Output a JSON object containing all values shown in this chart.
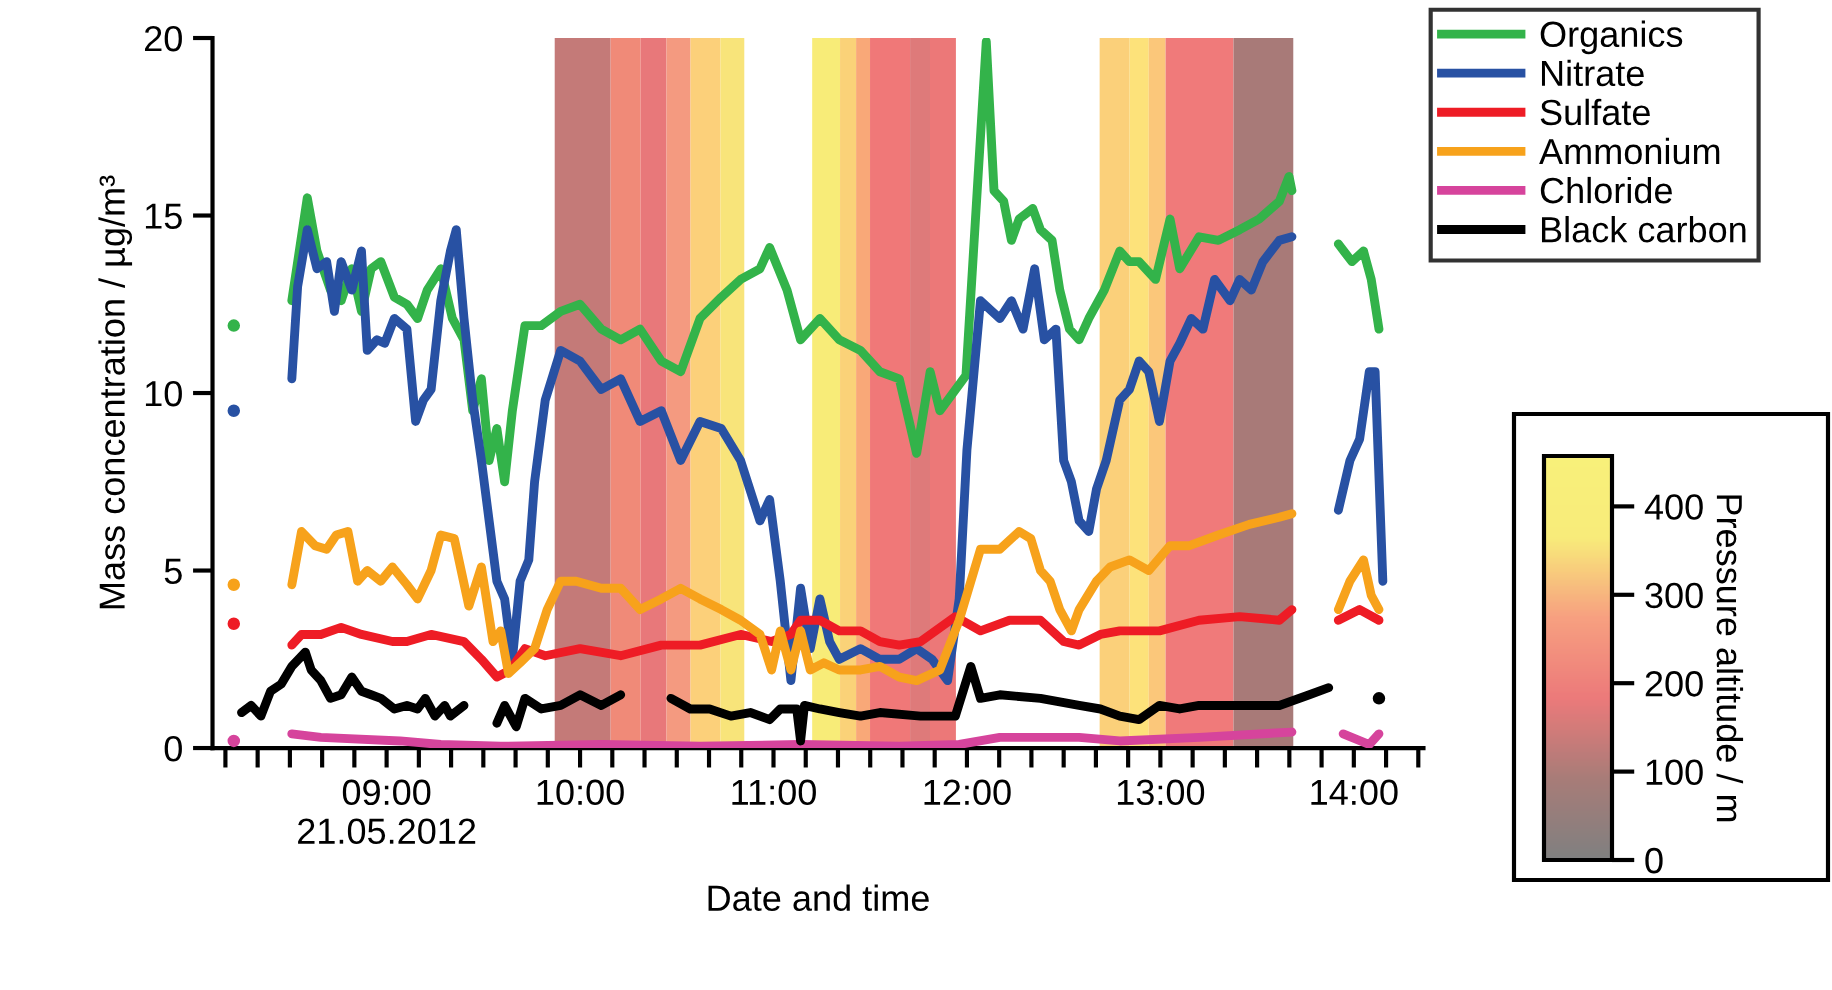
{
  "chart_data": {
    "type": "line",
    "xlabel": "Date and time",
    "ylabel": "Mass concentration / µg/m³",
    "clabel": "Pressure altitude / m",
    "clim": [
      0,
      457
    ],
    "cticks": [
      0,
      100,
      200,
      300,
      400
    ],
    "xlim": [
      8.1,
      14.36
    ],
    "ylim": [
      0,
      20
    ],
    "yticks": [
      0,
      5,
      10,
      15,
      20
    ],
    "legend": "top right",
    "grid": false,
    "marker": "none",
    "line_style": "solid",
    "xticks": [
      {
        "value": 8.1667,
        "label": null
      },
      {
        "value": 8.3333,
        "label": null
      },
      {
        "value": 8.5,
        "label": null
      },
      {
        "value": 8.6667,
        "label": null
      },
      {
        "value": 8.8333,
        "label": null
      },
      {
        "value": 9,
        "label": "09:00\n21.05.2012"
      },
      {
        "value": 9.1667,
        "label": null
      },
      {
        "value": 9.3333,
        "label": null
      },
      {
        "value": 9.5,
        "label": null
      },
      {
        "value": 9.6667,
        "label": null
      },
      {
        "value": 9.8333,
        "label": null
      },
      {
        "value": 10,
        "label": "10:00"
      },
      {
        "value": 10.1667,
        "label": null
      },
      {
        "value": 10.3333,
        "label": null
      },
      {
        "value": 10.5,
        "label": null
      },
      {
        "value": 10.6667,
        "label": null
      },
      {
        "value": 10.8333,
        "label": null
      },
      {
        "value": 11,
        "label": "11:00"
      },
      {
        "value": 11.1667,
        "label": null
      },
      {
        "value": 11.3333,
        "label": null
      },
      {
        "value": 11.5,
        "label": null
      },
      {
        "value": 11.6667,
        "label": null
      },
      {
        "value": 11.8333,
        "label": null
      },
      {
        "value": 12,
        "label": "12:00"
      },
      {
        "value": 12.1667,
        "label": null
      },
      {
        "value": 12.3333,
        "label": null
      },
      {
        "value": 12.5,
        "label": null
      },
      {
        "value": 12.6667,
        "label": null
      },
      {
        "value": 12.8333,
        "label": null
      },
      {
        "value": 13,
        "label": "13:00"
      },
      {
        "value": 13.1667,
        "label": null
      },
      {
        "value": 13.3333,
        "label": null
      },
      {
        "value": 13.5,
        "label": null
      },
      {
        "value": 13.6667,
        "label": null
      },
      {
        "value": 13.8333,
        "label": null
      },
      {
        "value": 14,
        "label": "14:00"
      },
      {
        "value": 14.1667,
        "label": null
      },
      {
        "value": 14.3333,
        "label": null
      }
    ],
    "bands": [
      {
        "axis": "x",
        "from": 9.869,
        "to": 10.158,
        "color": "#c47a78"
      },
      {
        "axis": "x",
        "from": 10.158,
        "to": 10.313,
        "color": "#f08a78"
      },
      {
        "axis": "x",
        "from": 10.313,
        "to": 10.447,
        "color": "#e8787a"
      },
      {
        "axis": "x",
        "from": 10.447,
        "to": 10.571,
        "color": "#f49a80"
      },
      {
        "axis": "x",
        "from": 10.571,
        "to": 10.726,
        "color": "#fcd07a"
      },
      {
        "axis": "x",
        "from": 10.726,
        "to": 10.849,
        "color": "#f8e47a"
      },
      {
        "axis": "x",
        "from": 11.2,
        "to": 11.344,
        "color": "#f8ec78"
      },
      {
        "axis": "x",
        "from": 11.344,
        "to": 11.427,
        "color": "#fad278"
      },
      {
        "axis": "x",
        "from": 11.427,
        "to": 11.499,
        "color": "#f9a878"
      },
      {
        "axis": "x",
        "from": 11.499,
        "to": 11.706,
        "color": "#f07878"
      },
      {
        "axis": "x",
        "from": 11.706,
        "to": 11.809,
        "color": "#de7a7a"
      },
      {
        "axis": "x",
        "from": 11.809,
        "to": 11.943,
        "color": "#ec7878"
      },
      {
        "axis": "x",
        "from": 12.686,
        "to": 12.841,
        "color": "#fbd07a"
      },
      {
        "axis": "x",
        "from": 12.841,
        "to": 12.94,
        "color": "#fde27a"
      },
      {
        "axis": "x",
        "from": 12.94,
        "to": 13.027,
        "color": "#fbc77a"
      },
      {
        "axis": "x",
        "from": 13.027,
        "to": 13.378,
        "color": "#f07a7a"
      },
      {
        "axis": "x",
        "from": 13.378,
        "to": 13.687,
        "color": "#a87a78"
      }
    ],
    "series": [
      {
        "name": "Organics",
        "color": "#33b34a",
        "x": [
          8.21,
          8.35,
          8.51,
          8.59,
          8.64,
          8.71,
          8.765,
          8.82,
          8.87,
          8.92,
          8.97,
          9.04,
          9.105,
          9.16,
          9.21,
          9.28,
          9.34,
          9.4,
          9.445,
          9.49,
          9.53,
          9.57,
          9.61,
          9.65,
          9.715,
          9.8,
          9.9,
          10.0,
          10.11,
          10.21,
          10.31,
          10.42,
          10.52,
          10.62,
          10.73,
          10.83,
          10.93,
          10.98,
          11.07,
          11.14,
          11.24,
          11.34,
          11.45,
          11.55,
          11.65,
          11.74,
          11.81,
          11.86,
          11.995,
          12.1,
          12.14,
          12.19,
          12.23,
          12.27,
          12.34,
          12.38,
          12.44,
          12.48,
          12.53,
          12.58,
          12.63,
          12.71,
          12.79,
          12.84,
          12.89,
          12.975,
          13.05,
          13.1,
          13.2,
          13.3,
          13.41,
          13.51,
          13.615,
          13.665,
          13.68,
          13.8,
          13.92,
          13.99,
          14.05,
          14.09,
          14.13
        ],
        "values": [
          11.9,
          null,
          12.6,
          15.5,
          14.0,
          12.9,
          12.6,
          13.5,
          12.3,
          13.5,
          13.7,
          12.7,
          12.5,
          12.1,
          12.9,
          13.5,
          12.1,
          11.5,
          9.5,
          10.4,
          8.1,
          9.0,
          7.5,
          9.5,
          11.9,
          11.9,
          12.3,
          12.5,
          11.8,
          11.5,
          11.8,
          10.9,
          10.6,
          12.1,
          12.7,
          13.2,
          13.5,
          14.1,
          12.9,
          11.5,
          12.1,
          11.5,
          11.2,
          10.6,
          10.4,
          8.3,
          10.6,
          9.5,
          10.5,
          19.9,
          15.7,
          15.4,
          14.3,
          14.9,
          15.2,
          14.6,
          14.3,
          12.9,
          11.8,
          11.5,
          12.1,
          12.9,
          14.0,
          13.7,
          13.7,
          13.2,
          14.9,
          13.5,
          14.4,
          14.3,
          14.6,
          14.9,
          15.4,
          16.1,
          15.7,
          null,
          14.2,
          13.7,
          14.0,
          13.2,
          11.8
        ]
      },
      {
        "name": "Nitrate",
        "color": "#2851a3",
        "x": [
          8.21,
          8.35,
          8.51,
          8.54,
          8.59,
          8.64,
          8.69,
          8.73,
          8.765,
          8.82,
          8.87,
          8.9,
          8.95,
          8.99,
          9.04,
          9.105,
          9.15,
          9.19,
          9.23,
          9.28,
          9.33,
          9.36,
          9.4,
          9.445,
          9.49,
          9.53,
          9.57,
          9.61,
          9.65,
          9.69,
          9.735,
          9.765,
          9.82,
          9.9,
          10.0,
          10.11,
          10.21,
          10.31,
          10.42,
          10.52,
          10.62,
          10.73,
          10.83,
          10.93,
          10.98,
          11.035,
          11.09,
          11.14,
          11.19,
          11.24,
          11.29,
          11.34,
          11.45,
          11.55,
          11.65,
          11.74,
          11.82,
          11.9,
          11.96,
          12.0,
          12.07,
          12.17,
          12.23,
          12.29,
          12.35,
          12.4,
          12.46,
          12.5,
          12.54,
          12.58,
          12.63,
          12.67,
          12.72,
          12.79,
          12.84,
          12.89,
          12.94,
          12.995,
          13.05,
          13.1,
          13.16,
          13.22,
          13.28,
          13.36,
          13.41,
          13.47,
          13.53,
          13.615,
          13.68,
          13.8,
          13.92,
          13.98,
          14.03,
          14.08,
          14.11,
          14.15
        ],
        "values": [
          9.5,
          null,
          10.4,
          13.0,
          14.6,
          13.5,
          13.7,
          12.3,
          13.7,
          12.9,
          14.0,
          11.2,
          11.5,
          11.4,
          12.1,
          11.8,
          9.2,
          9.8,
          10.1,
          12.6,
          14.0,
          14.6,
          12.1,
          9.8,
          8.1,
          6.4,
          4.7,
          4.2,
          2.5,
          4.7,
          5.3,
          7.5,
          9.8,
          11.2,
          10.9,
          10.1,
          10.4,
          9.2,
          9.5,
          8.1,
          9.2,
          9.0,
          8.1,
          6.4,
          7.0,
          4.7,
          1.9,
          4.5,
          2.8,
          4.2,
          3.0,
          2.5,
          2.8,
          2.5,
          2.5,
          2.8,
          2.5,
          1.9,
          4.2,
          8.4,
          12.6,
          12.1,
          12.6,
          11.8,
          13.5,
          11.5,
          11.8,
          8.1,
          7.5,
          6.4,
          6.1,
          7.3,
          8.1,
          9.8,
          10.1,
          10.9,
          10.6,
          9.2,
          10.9,
          11.4,
          12.1,
          11.8,
          13.2,
          12.6,
          13.2,
          12.9,
          13.7,
          14.3,
          14.4,
          null,
          6.7,
          8.1,
          8.7,
          10.6,
          10.6,
          4.7
        ]
      },
      {
        "name": "Sulfate",
        "color": "#ee1c25",
        "x": [
          8.21,
          8.35,
          8.51,
          8.56,
          8.66,
          8.765,
          8.87,
          9.03,
          9.105,
          9.23,
          9.4,
          9.49,
          9.57,
          9.64,
          9.715,
          9.82,
          10.0,
          10.21,
          10.42,
          10.62,
          10.83,
          10.99,
          11.09,
          11.14,
          11.24,
          11.34,
          11.45,
          11.55,
          11.65,
          11.76,
          11.94,
          12.07,
          12.22,
          12.38,
          12.5,
          12.58,
          12.69,
          12.79,
          12.995,
          13.2,
          13.41,
          13.615,
          13.68,
          13.8,
          13.92,
          14.03,
          14.13
        ],
        "values": [
          3.5,
          null,
          2.9,
          3.2,
          3.2,
          3.4,
          3.2,
          3.0,
          3.0,
          3.2,
          3.0,
          2.5,
          2.0,
          2.2,
          2.8,
          2.6,
          2.8,
          2.6,
          2.9,
          2.9,
          3.2,
          3.0,
          3.2,
          3.6,
          3.6,
          3.3,
          3.3,
          3.0,
          2.9,
          3.0,
          3.7,
          3.3,
          3.6,
          3.6,
          3.0,
          2.9,
          3.2,
          3.3,
          3.3,
          3.6,
          3.7,
          3.6,
          3.9,
          null,
          3.6,
          3.9,
          3.6
        ]
      },
      {
        "name": "Ammonium",
        "color": "#f7a21b",
        "x": [
          8.21,
          8.35,
          8.51,
          8.56,
          8.63,
          8.69,
          8.74,
          8.8,
          8.85,
          8.9,
          8.97,
          9.03,
          9.105,
          9.16,
          9.23,
          9.28,
          9.35,
          9.425,
          9.49,
          9.55,
          9.59,
          9.63,
          9.69,
          9.765,
          9.83,
          9.9,
          9.98,
          10.11,
          10.21,
          10.31,
          10.42,
          10.52,
          10.62,
          10.73,
          10.83,
          10.93,
          10.99,
          11.035,
          11.09,
          11.14,
          11.19,
          11.26,
          11.34,
          11.45,
          11.55,
          11.65,
          11.74,
          11.86,
          11.96,
          12.07,
          12.17,
          12.27,
          12.33,
          12.38,
          12.43,
          12.48,
          12.54,
          12.58,
          12.67,
          12.74,
          12.84,
          12.94,
          13.05,
          13.15,
          13.3,
          13.46,
          13.615,
          13.68,
          13.8,
          13.92,
          13.98,
          14.05,
          14.09,
          14.13
        ],
        "values": [
          4.6,
          null,
          4.6,
          6.1,
          5.7,
          5.6,
          6.0,
          6.1,
          4.7,
          5.0,
          4.7,
          5.1,
          4.6,
          4.2,
          5.0,
          6.0,
          5.9,
          4.0,
          5.1,
          3.0,
          3.3,
          2.1,
          2.4,
          2.8,
          3.9,
          4.7,
          4.7,
          4.5,
          4.5,
          3.9,
          4.2,
          4.5,
          4.2,
          3.9,
          3.6,
          3.2,
          2.2,
          3.3,
          2.2,
          3.3,
          2.2,
          2.4,
          2.2,
          2.2,
          2.3,
          2.0,
          1.9,
          2.2,
          3.6,
          5.6,
          5.6,
          6.1,
          5.9,
          5.0,
          4.7,
          3.9,
          3.3,
          3.9,
          4.7,
          5.1,
          5.3,
          5.0,
          5.7,
          5.7,
          6.0,
          6.3,
          6.5,
          6.6,
          null,
          3.9,
          4.7,
          5.3,
          4.3,
          3.9
        ]
      },
      {
        "name": "Chloride",
        "color": "#d6449c",
        "x": [
          8.21,
          8.35,
          8.51,
          8.66,
          9.07,
          9.28,
          9.59,
          10.11,
          10.62,
          11.14,
          11.65,
          11.96,
          12.17,
          12.58,
          12.79,
          13.2,
          13.68,
          13.8,
          13.945,
          14.08,
          14.13
        ],
        "values": [
          0.2,
          null,
          0.4,
          0.3,
          0.2,
          0.1,
          0.05,
          0.1,
          0.05,
          0.1,
          0.05,
          0.1,
          0.3,
          0.3,
          0.2,
          0.3,
          0.45,
          null,
          0.4,
          0.1,
          0.4
        ]
      },
      {
        "name": "Black carbon",
        "color": "#000000",
        "x": [
          8.25,
          8.3,
          8.35,
          8.4,
          8.455,
          8.51,
          8.58,
          8.61,
          8.66,
          8.71,
          8.765,
          8.82,
          8.87,
          8.92,
          8.97,
          9.04,
          9.105,
          9.16,
          9.2,
          9.25,
          9.3,
          9.33,
          9.4,
          9.49,
          9.57,
          9.61,
          9.67,
          9.715,
          9.8,
          9.9,
          10.0,
          10.11,
          10.21,
          10.35,
          10.47,
          10.57,
          10.67,
          10.78,
          10.88,
          10.98,
          11.035,
          11.12,
          11.14,
          11.16,
          11.24,
          11.34,
          11.45,
          11.55,
          11.76,
          11.94,
          12.02,
          12.07,
          12.17,
          12.38,
          12.58,
          12.69,
          12.79,
          12.89,
          12.995,
          13.1,
          13.2,
          13.41,
          13.615,
          13.77,
          13.87,
          13.95,
          14.13
        ],
        "values": [
          1.0,
          1.2,
          0.9,
          1.6,
          1.8,
          2.3,
          2.7,
          2.2,
          1.9,
          1.4,
          1.5,
          2.0,
          1.6,
          1.5,
          1.4,
          1.1,
          1.2,
          1.1,
          1.4,
          0.9,
          1.2,
          0.9,
          1.2,
          null,
          0.7,
          1.2,
          0.6,
          1.4,
          1.1,
          1.2,
          1.5,
          1.2,
          1.5,
          null,
          1.4,
          1.1,
          1.1,
          0.9,
          1.0,
          0.8,
          1.1,
          1.1,
          0.2,
          1.2,
          1.1,
          1.0,
          0.9,
          1.0,
          0.9,
          0.9,
          2.3,
          1.4,
          1.5,
          1.4,
          1.2,
          1.1,
          0.9,
          0.8,
          1.2,
          1.1,
          1.2,
          1.2,
          1.2,
          1.5,
          1.7,
          null,
          1.4
        ]
      }
    ]
  }
}
